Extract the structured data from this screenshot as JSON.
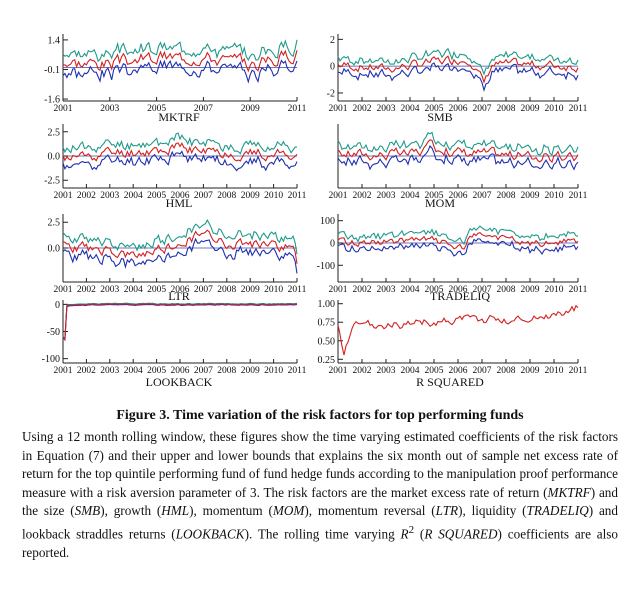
{
  "figure": {
    "title": "Figure 3. Time variation of the risk factors for top performing funds",
    "text_1": "Using a 12 month rolling window, these figures show the time varying estimated coefficients of the risk factors in Equation (7) and their upper and lower bounds that explains the six month out of sample net excess rate of return for the top quintile performing fund of fund hedge funds according to the manipulation proof performance measure with a risk aversion parameter of 3. The risk factors are the market excess rate of return (",
    "em_mktrf": "MKTRF",
    "text_2": ") and the size (",
    "em_smb": "SMB",
    "text_3": "), growth (",
    "em_hml": "HML",
    "text_4": "), momentum (",
    "em_mom": "MOM",
    "text_5": "), momentum reversal (",
    "em_ltr": "LTR",
    "text_6": "), liquidity (",
    "em_tradeliq": "TRADELIQ",
    "text_7": ") and lookback straddles returns (",
    "em_lookback": "LOOKBACK",
    "text_8": "). The rolling time varying ",
    "r_symbol": "R",
    "r_sup": "2",
    "text_9": " (",
    "em_rsq": "R SQUARED",
    "text_10": ") coefficients are also reported."
  },
  "colors": {
    "upper": "#1f9a8a",
    "coef": "#d32020",
    "lower": "#1f2fb0",
    "zero": "#3a4aa0"
  },
  "chart_data": [
    {
      "type": "line",
      "id": "mktrf",
      "title": "MKTRF",
      "xlim": [
        2001,
        2011
      ],
      "xticks": [
        2001,
        2003,
        2005,
        2007,
        2009,
        2011
      ],
      "ylim": [
        -1.7,
        1.7
      ],
      "yticks": [
        1.4,
        -0.1,
        -1.6
      ],
      "ytick_labels": [
        "1.4",
        "-0.1",
        "-1.6"
      ],
      "zero": 0,
      "seed": 3,
      "base": [
        [
          2001,
          0.3
        ],
        [
          2003,
          0.2
        ],
        [
          2005,
          0.5
        ],
        [
          2007,
          0.6
        ],
        [
          2009,
          0.1
        ],
        [
          2011,
          0.8
        ]
      ],
      "noise": 0.3,
      "band": 0.5
    },
    {
      "type": "line",
      "id": "smb",
      "title": "SMB",
      "xlim": [
        2001,
        2011
      ],
      "xticks": [
        2001,
        2002,
        2003,
        2004,
        2005,
        2006,
        2007,
        2008,
        2009,
        2010,
        2011
      ],
      "ylim": [
        -2.6,
        2.4
      ],
      "yticks": [
        2,
        0,
        -2
      ],
      "ytick_labels": [
        "2",
        "0",
        "-2"
      ],
      "zero": 0,
      "seed": 7,
      "base": [
        [
          2001,
          0.1
        ],
        [
          2003,
          -0.2
        ],
        [
          2005,
          0.3
        ],
        [
          2006.5,
          0.6
        ],
        [
          2007.1,
          -1.3
        ],
        [
          2007.4,
          0.1
        ],
        [
          2009,
          0.1
        ],
        [
          2011,
          0.0
        ]
      ],
      "noise": 0.3,
      "band": 0.55
    },
    {
      "type": "line",
      "id": "hml",
      "title": "HML",
      "xlim": [
        2001,
        2011
      ],
      "xticks": [
        2001,
        2002,
        2003,
        2004,
        2005,
        2006,
        2007,
        2008,
        2009,
        2010,
        2011
      ],
      "ylim": [
        -3.3,
        3.3
      ],
      "yticks": [
        2.5,
        0,
        -2.5
      ],
      "ytick_labels": [
        "2.5",
        "0.0",
        "-2.5"
      ],
      "zero": 0,
      "seed": 11,
      "base": [
        [
          2001,
          -0.3
        ],
        [
          2003,
          0.3
        ],
        [
          2006,
          0.8
        ],
        [
          2007,
          0.5
        ],
        [
          2009,
          0.2
        ],
        [
          2011,
          0.2
        ]
      ],
      "noise": 0.5,
      "band": 0.9
    },
    {
      "type": "line",
      "id": "mom",
      "title": "MOM",
      "xlim": [
        2001,
        2011
      ],
      "xticks": [
        2001,
        2002,
        2003,
        2004,
        2005,
        2006,
        2007,
        2008,
        2009,
        2010,
        2011
      ],
      "ylim": [
        -2.4,
        2.4
      ],
      "yticks": [],
      "ytick_labels": [],
      "zero": 0,
      "seed": 17,
      "base": [
        [
          2001,
          0.2
        ],
        [
          2004,
          0.1
        ],
        [
          2005,
          0.7
        ],
        [
          2006,
          0.3
        ],
        [
          2008,
          0.1
        ],
        [
          2011,
          -0.2
        ]
      ],
      "noise": 0.35,
      "band": 0.6
    },
    {
      "type": "line",
      "id": "ltr",
      "title": "LTR",
      "xlim": [
        2001,
        2011
      ],
      "xticks": [
        2001,
        2002,
        2003,
        2004,
        2005,
        2006,
        2007,
        2008,
        2009,
        2010,
        2011
      ],
      "ylim": [
        -3.3,
        3.3
      ],
      "yticks": [
        2.5,
        0
      ],
      "ytick_labels": [
        "2.5",
        "0.0"
      ],
      "zero": 0,
      "seed": 23,
      "base": [
        [
          2001,
          0.2
        ],
        [
          2003,
          -0.3
        ],
        [
          2004,
          -1.0
        ],
        [
          2006,
          0.4
        ],
        [
          2007,
          1.5
        ],
        [
          2008,
          0.6
        ],
        [
          2010,
          0.3
        ],
        [
          2010.8,
          0.0
        ],
        [
          2011,
          -1.6
        ]
      ],
      "noise": 0.45,
      "band": 0.9
    },
    {
      "type": "line",
      "id": "tradeliq",
      "title": "TRADELIQ",
      "xlim": [
        2001,
        2011
      ],
      "xticks": [
        2001,
        2002,
        2003,
        2004,
        2005,
        2006,
        2007,
        2008,
        2009,
        2010,
        2011
      ],
      "ylim": [
        -175,
        130
      ],
      "yticks": [
        100,
        0,
        -100
      ],
      "ytick_labels": [
        "100",
        "0",
        "-100"
      ],
      "zero": 0,
      "seed": 29,
      "base": [
        [
          2001,
          0
        ],
        [
          2004,
          10
        ],
        [
          2005,
          15
        ],
        [
          2006.3,
          -30
        ],
        [
          2006.5,
          20
        ],
        [
          2007,
          40
        ],
        [
          2008,
          20
        ],
        [
          2009,
          -5
        ],
        [
          2011,
          10
        ]
      ],
      "noise": 14,
      "band": 30
    },
    {
      "type": "line",
      "id": "lookback",
      "title": "LOOKBACK",
      "xlim": [
        2001,
        2011
      ],
      "xticks": [
        2001,
        2002,
        2003,
        2004,
        2005,
        2006,
        2007,
        2008,
        2009,
        2010,
        2011
      ],
      "ylim": [
        -108,
        8
      ],
      "yticks": [
        0,
        -50,
        -100
      ],
      "ytick_labels": [
        "0",
        "-50",
        "-100"
      ],
      "zero": 0,
      "seed": 31,
      "base": [
        [
          2001,
          -60
        ],
        [
          2001.05,
          -95
        ],
        [
          2001.15,
          -2
        ],
        [
          2002,
          0
        ],
        [
          2011,
          0
        ]
      ],
      "noise": 0.6,
      "band": 1.2
    },
    {
      "type": "line",
      "id": "rsquared",
      "title": "R SQUARED",
      "single": true,
      "xlim": [
        2001,
        2011
      ],
      "xticks": [
        2001,
        2002,
        2003,
        2004,
        2005,
        2006,
        2007,
        2008,
        2009,
        2010,
        2011
      ],
      "ylim": [
        0.2,
        1.05
      ],
      "yticks": [
        1.0,
        0.75,
        0.5,
        0.25
      ],
      "ytick_labels": [
        "1.00",
        "0.75",
        "0.50",
        "0.25"
      ],
      "zero": null,
      "seed": 37,
      "base": [
        [
          2001,
          0.7
        ],
        [
          2001.25,
          0.28
        ],
        [
          2001.6,
          0.7
        ],
        [
          2004,
          0.72
        ],
        [
          2006,
          0.8
        ],
        [
          2008,
          0.78
        ],
        [
          2010,
          0.86
        ],
        [
          2011,
          0.95
        ]
      ],
      "noise": 0.05,
      "band": 0
    }
  ]
}
